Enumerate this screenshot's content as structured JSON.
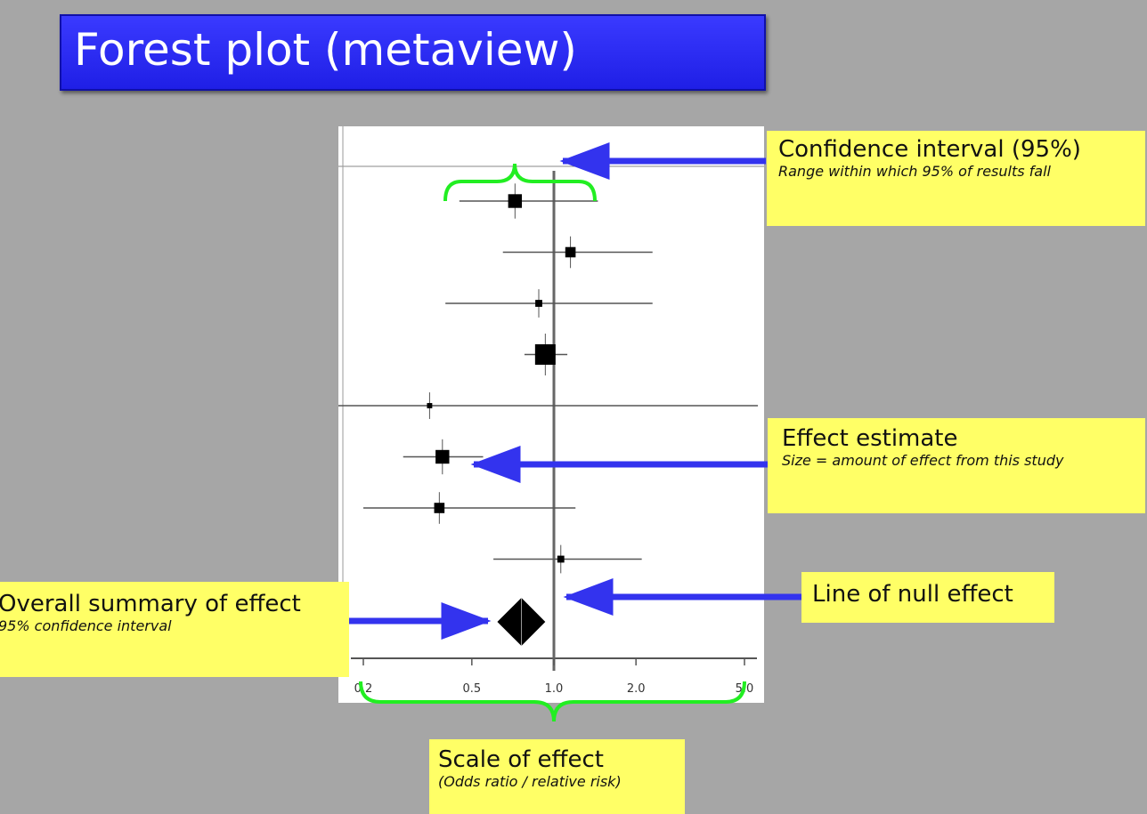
{
  "title": "Forest plot (metaview)",
  "callouts": {
    "confidence_interval": {
      "main": "Confidence interval (95%)",
      "sub": "Range within which 95% of results fall"
    },
    "effect_estimate": {
      "main": "Effect estimate",
      "sub": "Size = amount of effect from this study"
    },
    "null_effect": {
      "main": "Line of null effect"
    },
    "overall_summary": {
      "main": "Overall summary of effect",
      "sub": "95% confidence interval"
    },
    "scale": {
      "main": "Scale of effect",
      "sub": "(Odds ratio / relative risk)"
    }
  },
  "colors": {
    "background": "#a6a6a6",
    "title_bar": "#2b2bf5",
    "callout": "#ffff66",
    "arrow": "#3333ee",
    "brace": "#22ee22"
  },
  "chart_data": {
    "type": "forest",
    "axis": {
      "scale": "log",
      "tick_labels": [
        "0.2",
        "0.5",
        "1.0",
        "2.0",
        "5.0"
      ],
      "ticks": [
        0.2,
        0.5,
        1.0,
        2.0,
        5.0
      ],
      "null_value": 1.0
    },
    "studies": [
      {
        "estimate": 0.72,
        "lower": 0.45,
        "upper": 1.45,
        "weight": 6
      },
      {
        "estimate": 1.15,
        "lower": 0.65,
        "upper": 2.3,
        "weight": 4
      },
      {
        "estimate": 0.88,
        "lower": 0.4,
        "upper": 2.3,
        "weight": 2
      },
      {
        "estimate": 0.93,
        "lower": 0.78,
        "upper": 1.12,
        "weight": 10
      },
      {
        "estimate": 0.35,
        "lower": 0.1,
        "upper": 5.6,
        "weight": 1,
        "lower_arrow": true
      },
      {
        "estimate": 0.39,
        "lower": 0.28,
        "upper": 0.55,
        "weight": 6
      },
      {
        "estimate": 0.38,
        "lower": 0.2,
        "upper": 1.2,
        "weight": 4
      },
      {
        "estimate": 1.06,
        "lower": 0.6,
        "upper": 2.1,
        "weight": 2
      }
    ],
    "summary": {
      "estimate": 0.76,
      "lower": 0.62,
      "upper": 0.93
    }
  }
}
